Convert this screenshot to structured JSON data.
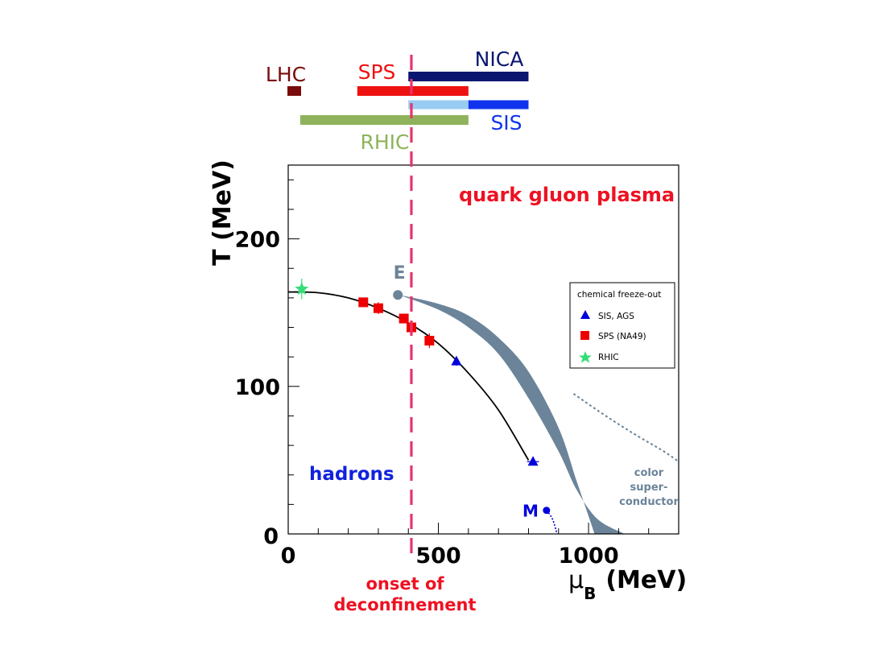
{
  "chart_data": {
    "type": "scatter",
    "xlabel": "μ",
    "xlabel_sub": "B",
    "xlabel_unit": "(MeV)",
    "ylabel": "T (MeV)",
    "xlim": [
      0,
      1300
    ],
    "ylim": [
      0,
      250
    ],
    "x_ticks": [
      {
        "value": 0,
        "label": "0"
      },
      {
        "value": 500,
        "label": "500"
      },
      {
        "value": 1000,
        "label": "1000"
      }
    ],
    "y_ticks": [
      {
        "value": 100,
        "label": "100"
      },
      {
        "value": 200,
        "label": "200"
      }
    ],
    "grid": false,
    "series": [
      {
        "name": "SIS, AGS",
        "marker": "triangle",
        "color": "#0000dd",
        "points": [
          [
            560,
            117
          ],
          [
            815,
            49
          ]
        ],
        "x_err": [
          8,
          20
        ],
        "y_err": [
          3,
          2
        ]
      },
      {
        "name": "SPS (NA49)",
        "marker": "square",
        "color": "#ee0000",
        "points": [
          [
            250,
            157
          ],
          [
            300,
            153
          ],
          [
            385,
            146
          ],
          [
            410,
            140
          ],
          [
            470,
            131
          ]
        ],
        "x_err": [
          0,
          0,
          0,
          0,
          0
        ],
        "y_err": [
          3,
          4,
          3,
          4,
          5
        ]
      },
      {
        "name": "RHIC",
        "marker": "star",
        "color": "#33dd77",
        "points": [
          [
            45,
            166
          ]
        ],
        "x_err": [
          0
        ],
        "y_err": [
          7
        ]
      }
    ],
    "freezeout_curve": [
      [
        0,
        164
      ],
      [
        100,
        163.5
      ],
      [
        200,
        160
      ],
      [
        300,
        153
      ],
      [
        400,
        143
      ],
      [
        500,
        129
      ],
      [
        600,
        109
      ],
      [
        700,
        84
      ],
      [
        800,
        50
      ]
    ],
    "crossover_line": {
      "color": "#6b8499",
      "upper": [
        [
          370,
          162
        ],
        [
          500,
          156
        ],
        [
          600,
          148
        ],
        [
          700,
          133
        ],
        [
          800,
          110
        ],
        [
          900,
          72
        ],
        [
          960,
          36
        ],
        [
          1000,
          12
        ],
        [
          1020,
          0
        ]
      ],
      "lower": [
        [
          370,
          162
        ],
        [
          500,
          152
        ],
        [
          600,
          140
        ],
        [
          700,
          122
        ],
        [
          800,
          92
        ],
        [
          900,
          56
        ],
        [
          960,
          30
        ],
        [
          1030,
          10
        ],
        [
          1120,
          0
        ]
      ]
    },
    "critical_point": {
      "label": "E",
      "x": 365,
      "y": 162,
      "color": "#6b8499"
    },
    "csc_boundary": {
      "color": "#6b8499",
      "points": [
        [
          950,
          95
        ],
        [
          1050,
          81
        ],
        [
          1150,
          68
        ],
        [
          1250,
          56
        ],
        [
          1300,
          49
        ]
      ]
    },
    "nuclear_point": {
      "label": "M",
      "x": 860,
      "y": 16,
      "color": "#0000dd",
      "tail": [
        [
          860,
          16
        ],
        [
          880,
          10
        ],
        [
          895,
          0
        ]
      ]
    },
    "onset_line": {
      "x": 410,
      "color": "#e8336b"
    },
    "legend": {
      "title": "chemical freeze-out",
      "position": "right"
    },
    "annotations": {
      "qgp": "quark gluon plasma",
      "hadrons": "hadrons",
      "csc_line1": "color",
      "csc_line2": "super-",
      "csc_line3": "conductor",
      "onset_line1": "onset of",
      "onset_line2": "deconfinement"
    },
    "facilities": [
      {
        "name": "LHC",
        "x_range": [
          0,
          40
        ],
        "color": "#7a0c0c",
        "row": 1
      },
      {
        "name": "SPS",
        "x_range": [
          230,
          600
        ],
        "color": "#ee1111",
        "row": 1
      },
      {
        "name": "NICA",
        "x_range": [
          400,
          800
        ],
        "color": "#0a1670",
        "row": 0
      },
      {
        "name": "SIS",
        "x_range": [
          400,
          800
        ],
        "color": "#1133ee",
        "color_low": "#99ccf2",
        "split_at": 600,
        "row": 2
      },
      {
        "name": "RHIC",
        "x_range": [
          40,
          600
        ],
        "color": "#8fb35a",
        "row": 3
      }
    ]
  }
}
